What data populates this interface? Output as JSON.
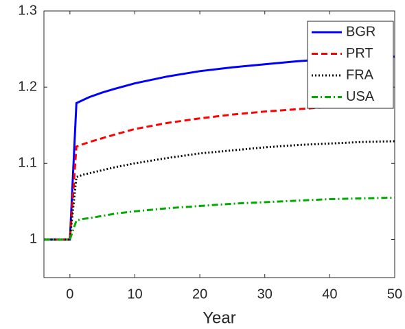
{
  "chart_data": {
    "type": "line",
    "xlabel": "Year",
    "x": [
      -4,
      0,
      1,
      2,
      3,
      5,
      7,
      10,
      15,
      20,
      25,
      30,
      35,
      40,
      45,
      50
    ],
    "series": [
      {
        "name": "BGR",
        "color": "#0000ff",
        "style": "solid",
        "values": [
          1,
          1,
          1.179,
          1.183,
          1.187,
          1.193,
          1.198,
          1.205,
          1.214,
          1.221,
          1.226,
          1.23,
          1.234,
          1.237,
          1.239,
          1.24
        ]
      },
      {
        "name": "PRT",
        "color": "#ff0000",
        "style": "dashed",
        "values": [
          1,
          1,
          1.122,
          1.125,
          1.128,
          1.133,
          1.138,
          1.145,
          1.153,
          1.159,
          1.164,
          1.168,
          1.171,
          1.174,
          1.176,
          1.177
        ]
      },
      {
        "name": "FRA",
        "color": "#000000",
        "style": "dotted",
        "values": [
          1,
          1,
          1.082,
          1.085,
          1.087,
          1.091,
          1.095,
          1.1,
          1.107,
          1.113,
          1.117,
          1.121,
          1.124,
          1.126,
          1.128,
          1.129
        ]
      },
      {
        "name": "USA",
        "color": "#00aa00",
        "style": "dashdot",
        "values": [
          1,
          1,
          1.025,
          1.027,
          1.028,
          1.031,
          1.034,
          1.037,
          1.041,
          1.044,
          1.047,
          1.049,
          1.051,
          1.053,
          1.054,
          1.055
        ]
      }
    ],
    "xlim": [
      -4,
      50
    ],
    "xticks": [
      0,
      10,
      20,
      30,
      40,
      50
    ],
    "ylim": [
      0.95,
      1.3
    ],
    "yticks": [
      1,
      1.1,
      1.2,
      1.3
    ],
    "grid": false,
    "legend": "northeast"
  }
}
